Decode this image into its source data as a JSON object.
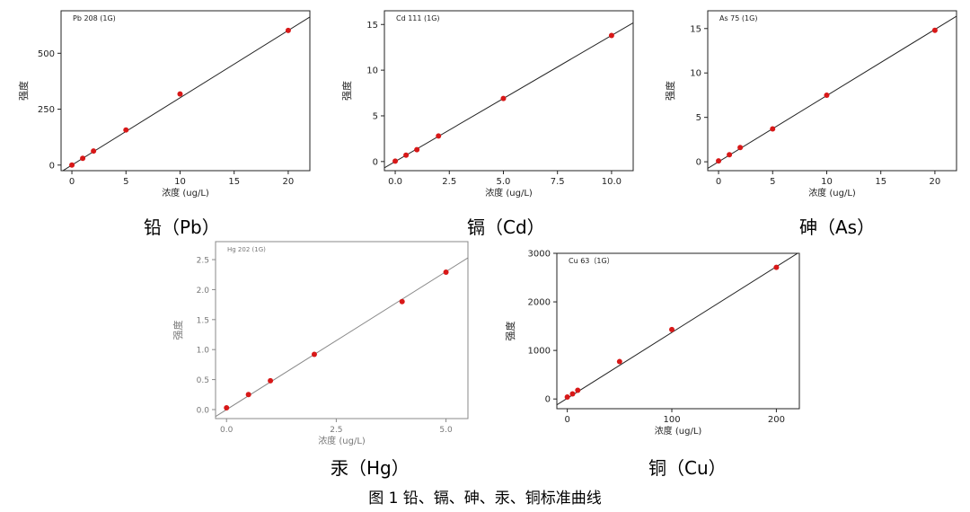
{
  "figure_caption": "图 1 铅、镉、砷、汞、铜标准曲线",
  "chart_data": [
    {
      "type": "scatter",
      "title": "Pb 208 (1G)",
      "xlabel": "浓度 (ug/L)",
      "ylabel": "强度",
      "xlim": [
        -1,
        22
      ],
      "ylim": [
        -25,
        690
      ],
      "xticks": [
        0,
        5,
        10,
        15,
        20
      ],
      "xtick_labels": [
        "0",
        "5",
        "10",
        "15",
        "20"
      ],
      "yticks": [
        0,
        250,
        500
      ],
      "ytick_labels": [
        "0",
        "250",
        "500"
      ],
      "grid": false,
      "series": [
        {
          "x": [
            0,
            1,
            2,
            5,
            10,
            20
          ],
          "y": [
            0,
            30,
            63,
            157,
            318,
            602
          ],
          "fit": [
            0,
            30.1
          ]
        }
      ],
      "caption": "铅（Pb）"
    },
    {
      "type": "scatter",
      "title": "Cd 111 (1G)",
      "xlabel": "浓度 (ug/L)",
      "ylabel": "强度",
      "xlim": [
        -0.5,
        11
      ],
      "ylim": [
        -1,
        16.5
      ],
      "xticks": [
        0,
        2.5,
        5,
        7.5,
        10
      ],
      "xtick_labels": [
        "0.0",
        "2.5",
        "5.0",
        "7.5",
        "10.0"
      ],
      "yticks": [
        0,
        5,
        10,
        15
      ],
      "ytick_labels": [
        "0",
        "5",
        "10",
        "15"
      ],
      "grid": false,
      "series": [
        {
          "x": [
            0,
            0.5,
            1,
            2,
            5,
            10
          ],
          "y": [
            0.05,
            0.7,
            1.3,
            2.8,
            6.9,
            13.8
          ],
          "fit": [
            0,
            1.38
          ]
        }
      ],
      "caption": "镉（Cd）"
    },
    {
      "type": "scatter",
      "title": "As 75 (1G)",
      "xlabel": "浓度 (ug/L)",
      "ylabel": "强度",
      "xlim": [
        -1,
        22
      ],
      "ylim": [
        -1,
        17
      ],
      "xticks": [
        0,
        5,
        10,
        15,
        20
      ],
      "xtick_labels": [
        "0",
        "5",
        "10",
        "15",
        "20"
      ],
      "yticks": [
        0,
        5,
        10,
        15
      ],
      "ytick_labels": [
        "0",
        "5",
        "10",
        "15"
      ],
      "grid": false,
      "series": [
        {
          "x": [
            0,
            1,
            2,
            5,
            10,
            20
          ],
          "y": [
            0.1,
            0.8,
            1.6,
            3.7,
            7.5,
            14.8
          ],
          "fit": [
            0,
            0.745
          ]
        }
      ],
      "caption": "砷（As）"
    },
    {
      "type": "scatter",
      "title": "Hg 202 (1G)",
      "xlabel": "浓度 (ug/L)",
      "ylabel": "强度",
      "xlim": [
        -0.25,
        5.5
      ],
      "ylim": [
        -0.15,
        2.8
      ],
      "xticks": [
        0,
        2.5,
        5
      ],
      "xtick_labels": [
        "0.0",
        "2.5",
        "5.0"
      ],
      "yticks": [
        0,
        0.5,
        1,
        1.5,
        2,
        2.5
      ],
      "ytick_labels": [
        "0.0",
        "0.5",
        "1.0",
        "1.5",
        "2.0",
        "2.5"
      ],
      "grid": false,
      "series": [
        {
          "x": [
            0,
            0.5,
            1,
            2,
            4,
            5
          ],
          "y": [
            0.03,
            0.25,
            0.48,
            0.92,
            1.8,
            2.29
          ],
          "fit": [
            0,
            0.46
          ]
        }
      ],
      "caption": "汞（Hg）"
    },
    {
      "type": "scatter",
      "title": "Cu 63（1G）",
      "xlabel": "浓度 (ug/L)",
      "ylabel": "强度",
      "xlim": [
        -10,
        222
      ],
      "ylim": [
        -200,
        3000
      ],
      "xticks": [
        0,
        100,
        200
      ],
      "xtick_labels": [
        "0",
        "100",
        "200"
      ],
      "yticks": [
        0,
        1000,
        2000,
        3000
      ],
      "ytick_labels": [
        "0",
        "1000",
        "2000",
        "3000"
      ],
      "grid": false,
      "series": [
        {
          "x": [
            0,
            5,
            10,
            50,
            100,
            200
          ],
          "y": [
            40,
            105,
            180,
            770,
            1430,
            2710
          ],
          "fit": [
            15,
            13.55
          ]
        }
      ],
      "caption": "铜（Cu）"
    }
  ]
}
